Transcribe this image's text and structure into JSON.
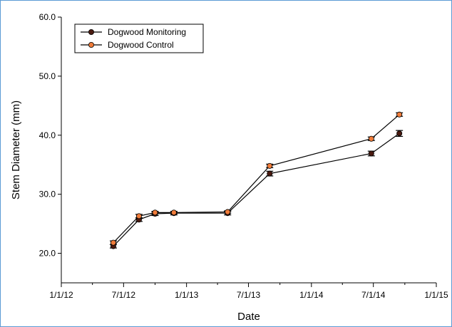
{
  "chart_data": {
    "type": "line",
    "title": "",
    "xlabel": "Date",
    "ylabel": "Stem Diameter (mm)",
    "x_type": "date",
    "xlim": [
      "2012-01-01",
      "2015-01-01"
    ],
    "ylim": [
      15,
      60
    ],
    "x_ticks": [
      "2012-01-01",
      "2012-07-01",
      "2013-01-01",
      "2013-07-01",
      "2014-01-01",
      "2014-07-01",
      "2015-01-01"
    ],
    "x_tick_labels": [
      "1/1/12",
      "7/1/12",
      "1/1/13",
      "7/1/13",
      "1/1/14",
      "7/1/14",
      "1/1/15"
    ],
    "y_ticks": [
      20,
      30,
      40,
      50,
      60
    ],
    "y_tick_labels": [
      "20.0",
      "30.0",
      "40.0",
      "50.0",
      "60.0"
    ],
    "minor_x_ticks": true,
    "grid": false,
    "legend_position": "top-left",
    "series": [
      {
        "name": "Dogwood Monitoring",
        "color": "#000000",
        "marker_fill": "#4a1a10",
        "x": [
          "2012-06-01",
          "2012-08-15",
          "2012-10-01",
          "2012-11-25",
          "2013-05-01",
          "2013-09-01",
          "2014-06-25",
          "2014-09-15"
        ],
        "y": [
          21.2,
          25.7,
          26.7,
          26.8,
          26.8,
          33.5,
          36.9,
          40.3
        ],
        "error": [
          0.3,
          0.3,
          0.3,
          0.3,
          0.3,
          0.4,
          0.4,
          0.5
        ]
      },
      {
        "name": "Dogwood Control",
        "color": "#000000",
        "marker_fill": "#f07c3a",
        "x": [
          "2012-06-01",
          "2012-08-15",
          "2012-10-01",
          "2012-11-25",
          "2013-05-01",
          "2013-09-01",
          "2014-06-25",
          "2014-09-15"
        ],
        "y": [
          21.8,
          26.3,
          26.9,
          26.9,
          27.0,
          34.8,
          39.4,
          43.5
        ],
        "error": [
          0.3,
          0.3,
          0.2,
          0.2,
          0.2,
          0.3,
          0.3,
          0.3
        ]
      }
    ]
  }
}
